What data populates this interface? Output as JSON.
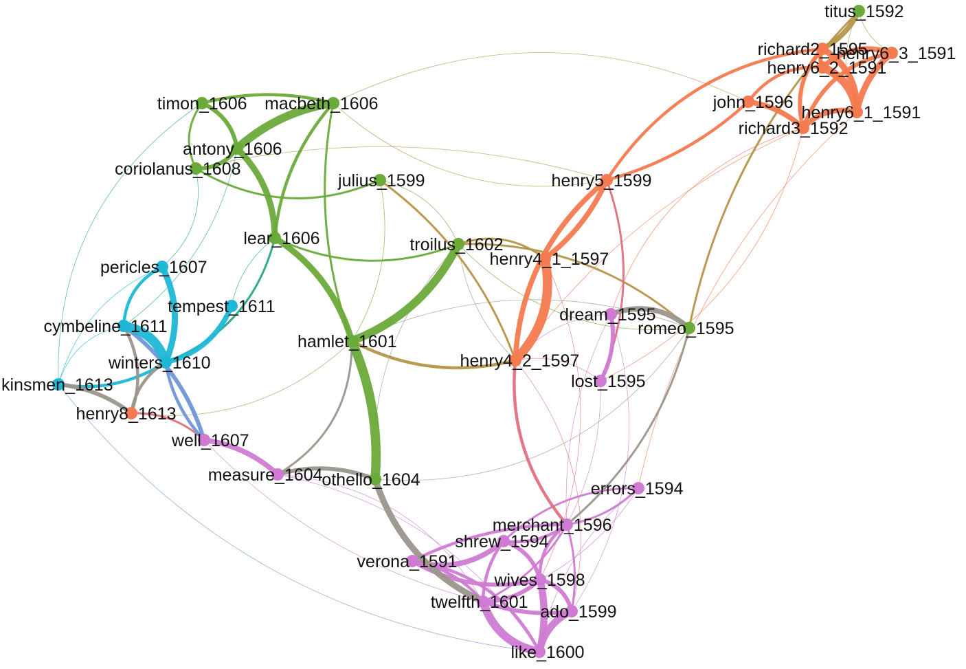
{
  "graph": {
    "groups": {
      "roman_tragedy": "#6aaa3a",
      "history": "#f47a4f",
      "comedy": "#d07bd3",
      "romance": "#1fb7d6",
      "other": "#9a968c"
    },
    "nodes": [
      {
        "id": "titus_1592",
        "label": "titus_1592",
        "group": "roman_tragedy"
      },
      {
        "id": "richard2_1595",
        "label": "richard2_1595",
        "group": "history"
      },
      {
        "id": "henry6_3_1591",
        "label": "henry6_3_1591",
        "group": "history"
      },
      {
        "id": "henry6_2_1591",
        "label": "henry6_2_1591",
        "group": "history"
      },
      {
        "id": "john_1596",
        "label": "john_1596",
        "group": "history"
      },
      {
        "id": "henry6_1_1591",
        "label": "henry6_1_1591",
        "group": "history"
      },
      {
        "id": "richard3_1592",
        "label": "richard3_1592",
        "group": "history"
      },
      {
        "id": "timon_1606",
        "label": "timon_1606",
        "group": "roman_tragedy"
      },
      {
        "id": "macbeth_1606",
        "label": "macbeth_1606",
        "group": "roman_tragedy"
      },
      {
        "id": "antony_1606",
        "label": "antony_1606",
        "group": "roman_tragedy"
      },
      {
        "id": "coriolanus_1608",
        "label": "coriolanus_1608",
        "group": "roman_tragedy"
      },
      {
        "id": "julius_1599",
        "label": "julius_1599",
        "group": "roman_tragedy"
      },
      {
        "id": "henry5_1599",
        "label": "henry5_1599",
        "group": "history"
      },
      {
        "id": "lear_1606",
        "label": "lear_1606",
        "group": "roman_tragedy"
      },
      {
        "id": "troilus_1602",
        "label": "troilus_1602",
        "group": "roman_tragedy"
      },
      {
        "id": "henry4_1_1597",
        "label": "henry4_1_1597",
        "group": "history"
      },
      {
        "id": "pericles_1607",
        "label": "pericles_1607",
        "group": "romance"
      },
      {
        "id": "tempest_1611",
        "label": "tempest_1611",
        "group": "romance"
      },
      {
        "id": "dream_1595",
        "label": "dream_1595",
        "group": "comedy"
      },
      {
        "id": "romeo_1595",
        "label": "romeo_1595",
        "group": "roman_tragedy"
      },
      {
        "id": "cymbeline_1611",
        "label": "cymbeline_1611",
        "group": "romance"
      },
      {
        "id": "hamlet_1601",
        "label": "hamlet_1601",
        "group": "roman_tragedy"
      },
      {
        "id": "winters_1610",
        "label": "winters_1610",
        "group": "romance"
      },
      {
        "id": "henry4_2_1597",
        "label": "henry4_2_1597",
        "group": "history"
      },
      {
        "id": "lost_1595",
        "label": "lost_1595",
        "group": "comedy"
      },
      {
        "id": "kinsmen_1613",
        "label": "kinsmen_1613",
        "group": "romance"
      },
      {
        "id": "henry8_1613",
        "label": "henry8_1613",
        "group": "history"
      },
      {
        "id": "well_1607",
        "label": "well_1607",
        "group": "comedy"
      },
      {
        "id": "measure_1604",
        "label": "measure_1604",
        "group": "comedy"
      },
      {
        "id": "othello_1604",
        "label": "othello_1604",
        "group": "roman_tragedy"
      },
      {
        "id": "errors_1594",
        "label": "errors_1594",
        "group": "comedy"
      },
      {
        "id": "merchant_1596",
        "label": "merchant_1596",
        "group": "comedy"
      },
      {
        "id": "shrew_1594",
        "label": "shrew_1594",
        "group": "comedy"
      },
      {
        "id": "verona_1591",
        "label": "verona_1591",
        "group": "comedy"
      },
      {
        "id": "wives_1598",
        "label": "wives_1598",
        "group": "comedy"
      },
      {
        "id": "twelfth_1601",
        "label": "twelfth_1601",
        "group": "comedy"
      },
      {
        "id": "ado_1599",
        "label": "ado_1599",
        "group": "comedy"
      },
      {
        "id": "like_1600",
        "label": "like_1600",
        "group": "comedy"
      }
    ],
    "edges": [
      {
        "source": "hamlet_1601",
        "target": "othello_1604",
        "weight": 9,
        "color": "#6aaa3a"
      },
      {
        "source": "hamlet_1601",
        "target": "troilus_1602",
        "weight": 8,
        "color": "#6aaa3a"
      },
      {
        "source": "hamlet_1601",
        "target": "lear_1606",
        "weight": 6,
        "color": "#6aaa3a"
      },
      {
        "source": "antony_1606",
        "target": "macbeth_1606",
        "weight": 8,
        "color": "#6aaa3a"
      },
      {
        "source": "antony_1606",
        "target": "lear_1606",
        "weight": 6,
        "color": "#6aaa3a"
      },
      {
        "source": "antony_1606",
        "target": "timon_1606",
        "weight": 4,
        "color": "#6aaa3a"
      },
      {
        "source": "coriolanus_1608",
        "target": "antony_1606",
        "weight": 4,
        "color": "#6aaa3a"
      },
      {
        "source": "timon_1606",
        "target": "macbeth_1606",
        "weight": 3,
        "color": "#6aaa3a"
      },
      {
        "source": "macbeth_1606",
        "target": "lear_1606",
        "weight": 3,
        "color": "#6aaa3a"
      },
      {
        "source": "macbeth_1606",
        "target": "hamlet_1601",
        "weight": 2,
        "color": "#6aaa3a"
      },
      {
        "source": "coriolanus_1608",
        "target": "julius_1599",
        "weight": 2,
        "color": "#6aaa3a"
      },
      {
        "source": "julius_1599",
        "target": "troilus_1602",
        "weight": 1,
        "color": "#6aaa3a"
      },
      {
        "source": "julius_1599",
        "target": "hamlet_1601",
        "weight": 1,
        "color": "#6aaa3a"
      },
      {
        "source": "lear_1606",
        "target": "troilus_1602",
        "weight": 2,
        "color": "#6aaa3a"
      },
      {
        "source": "timon_1606",
        "target": "coriolanus_1608",
        "weight": 2,
        "color": "#6aaa3a"
      },
      {
        "source": "romeo_1595",
        "target": "troilus_1602",
        "weight": 1,
        "color": "#6aaa3a"
      },
      {
        "source": "lear_1606",
        "target": "tempest_1611",
        "weight": 1,
        "color": "#2aa58a"
      },
      {
        "source": "coriolanus_1608",
        "target": "pericles_1607",
        "weight": 1,
        "color": "#2aa58a"
      },
      {
        "source": "timon_1606",
        "target": "kinsmen_1613",
        "weight": 1,
        "color": "#2aa58a"
      },
      {
        "source": "antony_1606",
        "target": "cymbeline_1611",
        "weight": 1,
        "color": "#2aa58a"
      },
      {
        "source": "lear_1606",
        "target": "winters_1610",
        "weight": 2,
        "color": "#2aa58a"
      },
      {
        "source": "cymbeline_1611",
        "target": "winters_1610",
        "weight": 9,
        "color": "#1fb7d6"
      },
      {
        "source": "pericles_1607",
        "target": "winters_1610",
        "weight": 6,
        "color": "#1fb7d6"
      },
      {
        "source": "tempest_1611",
        "target": "winters_1610",
        "weight": 5,
        "color": "#1fb7d6"
      },
      {
        "source": "kinsmen_1613",
        "target": "winters_1610",
        "weight": 3,
        "color": "#1fb7d6"
      },
      {
        "source": "pericles_1607",
        "target": "cymbeline_1611",
        "weight": 3,
        "color": "#1fb7d6"
      },
      {
        "source": "kinsmen_1613",
        "target": "cymbeline_1611",
        "weight": 1,
        "color": "#1fb7d6"
      },
      {
        "source": "kinsmen_1613",
        "target": "pericles_1607",
        "weight": 1,
        "color": "#1fb7d6"
      },
      {
        "source": "cymbeline_1611",
        "target": "well_1607",
        "weight": 4,
        "color": "#6e97d6"
      },
      {
        "source": "winters_1610",
        "target": "well_1607",
        "weight": 3,
        "color": "#6e97d6"
      },
      {
        "source": "kinsmen_1613",
        "target": "like_1600",
        "weight": 1,
        "color": "#6e97d6"
      },
      {
        "source": "kinsmen_1613",
        "target": "henry8_1613",
        "weight": 4,
        "color": "#9a968c"
      },
      {
        "source": "henry8_1613",
        "target": "winters_1610",
        "weight": 3,
        "color": "#9a968c"
      },
      {
        "source": "henry8_1613",
        "target": "cymbeline_1611",
        "weight": 3,
        "color": "#9a968c"
      },
      {
        "source": "henry8_1613",
        "target": "well_1607",
        "weight": 2,
        "color": "#e0707f"
      },
      {
        "source": "well_1607",
        "target": "measure_1604",
        "weight": 5,
        "color": "#d07bd3"
      },
      {
        "source": "measure_1604",
        "target": "othello_1604",
        "weight": 4,
        "color": "#9a968c"
      },
      {
        "source": "measure_1604",
        "target": "hamlet_1601",
        "weight": 2,
        "color": "#9a968c"
      },
      {
        "source": "othello_1604",
        "target": "twelfth_1601",
        "weight": 6,
        "color": "#9a968c"
      },
      {
        "source": "othello_1604",
        "target": "troilus_1602",
        "weight": 1,
        "color": "#9a968c"
      },
      {
        "source": "othello_1604",
        "target": "romeo_1595",
        "weight": 1,
        "color": "#9a968c"
      },
      {
        "source": "dream_1595",
        "target": "romeo_1595",
        "weight": 5,
        "color": "#9a968c"
      },
      {
        "source": "romeo_1595",
        "target": "merchant_1596",
        "weight": 2,
        "color": "#9a968c"
      },
      {
        "source": "hamlet_1601",
        "target": "romeo_1595",
        "weight": 1,
        "color": "#9a968c"
      },
      {
        "source": "troilus_1602",
        "target": "henry4_2_1597",
        "weight": 1,
        "color": "#9a968c"
      },
      {
        "source": "hamlet_1601",
        "target": "henry4_2_1597",
        "weight": 3,
        "color": "#b4954a"
      },
      {
        "source": "troilus_1602",
        "target": "henry4_1_1597",
        "weight": 2,
        "color": "#b4954a"
      },
      {
        "source": "julius_1599",
        "target": "henry4_2_1597",
        "weight": 2,
        "color": "#b4954a"
      },
      {
        "source": "macbeth_1606",
        "target": "henry5_1599",
        "weight": 1,
        "color": "#b4954a"
      },
      {
        "source": "coriolanus_1608",
        "target": "henry5_1599",
        "weight": 1,
        "color": "#b4954a"
      },
      {
        "source": "macbeth_1606",
        "target": "john_1596",
        "weight": 1,
        "color": "#b4954a"
      },
      {
        "source": "titus_1592",
        "target": "romeo_1595",
        "weight": 2,
        "color": "#b4954a"
      },
      {
        "source": "titus_1592",
        "target": "richard2_1595",
        "weight": 5,
        "color": "#b4954a"
      },
      {
        "source": "titus_1592",
        "target": "henry6_1_1591",
        "weight": 1,
        "color": "#b4954a"
      },
      {
        "source": "titus_1592",
        "target": "henry6_3_1591",
        "weight": 1,
        "color": "#b4954a"
      },
      {
        "source": "henry8_1613",
        "target": "hamlet_1601",
        "weight": 1,
        "color": "#b4954a"
      },
      {
        "source": "troilus_1602",
        "target": "romeo_1595",
        "weight": 2,
        "color": "#b4954a"
      },
      {
        "source": "richard2_1595",
        "target": "henry6_1_1591",
        "weight": 6,
        "color": "#f47a4f"
      },
      {
        "source": "richard2_1595",
        "target": "henry6_2_1591",
        "weight": 4,
        "color": "#f47a4f"
      },
      {
        "source": "henry6_2_1591",
        "target": "henry6_3_1591",
        "weight": 5,
        "color": "#f47a4f"
      },
      {
        "source": "henry6_3_1591",
        "target": "henry6_1_1591",
        "weight": 6,
        "color": "#f47a4f"
      },
      {
        "source": "henry6_2_1591",
        "target": "henry6_1_1591",
        "weight": 8,
        "color": "#f47a4f"
      },
      {
        "source": "john_1596",
        "target": "richard3_1592",
        "weight": 5,
        "color": "#f47a4f"
      },
      {
        "source": "richard3_1592",
        "target": "henry6_1_1591",
        "weight": 5,
        "color": "#f47a4f"
      },
      {
        "source": "richard3_1592",
        "target": "henry6_3_1591",
        "weight": 4,
        "color": "#f47a4f"
      },
      {
        "source": "john_1596",
        "target": "henry6_2_1591",
        "weight": 3,
        "color": "#f47a4f"
      },
      {
        "source": "richard2_1595",
        "target": "richard3_1592",
        "weight": 4,
        "color": "#f47a4f"
      },
      {
        "source": "richard2_1595",
        "target": "henry5_1599",
        "weight": 3,
        "color": "#f47a4f"
      },
      {
        "source": "john_1596",
        "target": "henry5_1599",
        "weight": 3,
        "color": "#f47a4f"
      },
      {
        "source": "henry5_1599",
        "target": "henry4_1_1597",
        "weight": 5,
        "color": "#f47a4f"
      },
      {
        "source": "henry5_1599",
        "target": "henry4_2_1597",
        "weight": 5,
        "color": "#f47a4f"
      },
      {
        "source": "henry4_1_1597",
        "target": "henry4_2_1597",
        "weight": 9,
        "color": "#f47a4f"
      },
      {
        "source": "richard3_1592",
        "target": "dream_1595",
        "weight": 1,
        "color": "#f47a4f"
      },
      {
        "source": "richard3_1592",
        "target": "lost_1595",
        "weight": 1,
        "color": "#f47a4f"
      },
      {
        "source": "richard3_1592",
        "target": "henry4_2_1597",
        "weight": 1,
        "color": "#f47a4f"
      },
      {
        "source": "henry6_1_1591",
        "target": "errors_1594",
        "weight": 1,
        "color": "#f47a4f"
      },
      {
        "source": "henry4_2_1597",
        "target": "merchant_1596",
        "weight": 3,
        "color": "#e0707f"
      },
      {
        "source": "henry5_1599",
        "target": "lost_1595",
        "weight": 2,
        "color": "#e0707f"
      },
      {
        "source": "henry4_1_1597",
        "target": "wives_1598",
        "weight": 1,
        "color": "#e0707f"
      },
      {
        "source": "henry4_2_1597",
        "target": "ado_1599",
        "weight": 1,
        "color": "#e0707f"
      },
      {
        "source": "henry4_2_1597",
        "target": "lost_1595",
        "weight": 1,
        "color": "#e0707f"
      },
      {
        "source": "dream_1595",
        "target": "lost_1595",
        "weight": 4,
        "color": "#d07bd3"
      },
      {
        "source": "dream_1595",
        "target": "henry4_2_1597",
        "weight": 1,
        "color": "#d07bd3"
      },
      {
        "source": "lost_1595",
        "target": "merchant_1596",
        "weight": 1,
        "color": "#d07bd3"
      },
      {
        "source": "errors_1594",
        "target": "merchant_1596",
        "weight": 2,
        "color": "#d07bd3"
      },
      {
        "source": "errors_1594",
        "target": "shrew_1594",
        "weight": 2,
        "color": "#d07bd3"
      },
      {
        "source": "errors_1594",
        "target": "like_1600",
        "weight": 1,
        "color": "#d07bd3"
      },
      {
        "source": "errors_1594",
        "target": "wives_1598",
        "weight": 1,
        "color": "#d07bd3"
      },
      {
        "source": "merchant_1596",
        "target": "shrew_1594",
        "weight": 3,
        "color": "#d07bd3"
      },
      {
        "source": "merchant_1596",
        "target": "verona_1591",
        "weight": 3,
        "color": "#d07bd3"
      },
      {
        "source": "merchant_1596",
        "target": "wives_1598",
        "weight": 3,
        "color": "#d07bd3"
      },
      {
        "source": "merchant_1596",
        "target": "twelfth_1601",
        "weight": 2,
        "color": "#d07bd3"
      },
      {
        "source": "merchant_1596",
        "target": "ado_1599",
        "weight": 2,
        "color": "#d07bd3"
      },
      {
        "source": "shrew_1594",
        "target": "verona_1591",
        "weight": 5,
        "color": "#d07bd3"
      },
      {
        "source": "shrew_1594",
        "target": "wives_1598",
        "weight": 4,
        "color": "#d07bd3"
      },
      {
        "source": "shrew_1594",
        "target": "twelfth_1601",
        "weight": 3,
        "color": "#d07bd3"
      },
      {
        "source": "verona_1591",
        "target": "wives_1598",
        "weight": 4,
        "color": "#d07bd3"
      },
      {
        "source": "verona_1591",
        "target": "twelfth_1601",
        "weight": 3,
        "color": "#d07bd3"
      },
      {
        "source": "wives_1598",
        "target": "twelfth_1601",
        "weight": 4,
        "color": "#d07bd3"
      },
      {
        "source": "wives_1598",
        "target": "ado_1599",
        "weight": 4,
        "color": "#d07bd3"
      },
      {
        "source": "wives_1598",
        "target": "like_1600",
        "weight": 7,
        "color": "#d07bd3"
      },
      {
        "source": "twelfth_1601",
        "target": "like_1600",
        "weight": 8,
        "color": "#d07bd3"
      },
      {
        "source": "twelfth_1601",
        "target": "ado_1599",
        "weight": 4,
        "color": "#d07bd3"
      },
      {
        "source": "ado_1599",
        "target": "like_1600",
        "weight": 7,
        "color": "#d07bd3"
      },
      {
        "source": "verona_1591",
        "target": "like_1600",
        "weight": 3,
        "color": "#d07bd3"
      },
      {
        "source": "measure_1604",
        "target": "like_1600",
        "weight": 1,
        "color": "#d07bd3"
      },
      {
        "source": "measure_1604",
        "target": "twelfth_1601",
        "weight": 1,
        "color": "#d07bd3"
      },
      {
        "source": "well_1607",
        "target": "twelfth_1601",
        "weight": 1,
        "color": "#d07bd3"
      },
      {
        "source": "dream_1595",
        "target": "ado_1599",
        "weight": 1,
        "color": "#d07bd3"
      },
      {
        "source": "dream_1595",
        "target": "merchant_1596",
        "weight": 1,
        "color": "#d07bd3"
      }
    ]
  }
}
